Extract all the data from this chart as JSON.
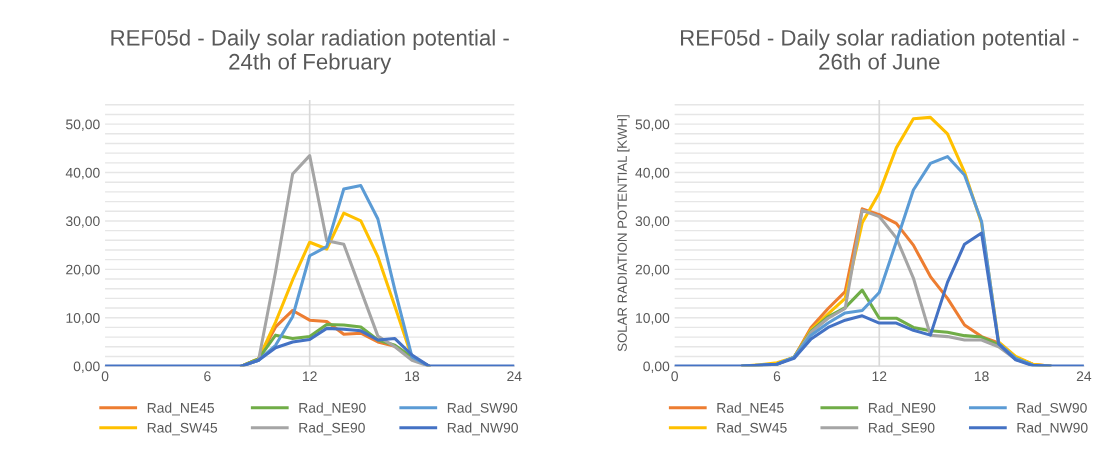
{
  "chart_data": [
    {
      "type": "line",
      "title": "REF05d - Daily solar radiation potential -\n24th of February",
      "x": [
        0,
        1,
        2,
        3,
        4,
        5,
        6,
        7,
        8,
        9,
        10,
        11,
        12,
        13,
        14,
        15,
        16,
        17,
        18,
        19,
        20,
        21,
        22,
        23,
        24
      ],
      "xlim": [
        0,
        24
      ],
      "xticks": [
        0,
        6,
        12,
        18,
        24
      ],
      "ylim": [
        0,
        55
      ],
      "yticks": [
        {
          "value": 0,
          "label": "0,00"
        },
        {
          "value": 2,
          "label": null
        },
        {
          "value": 4,
          "label": null
        },
        {
          "value": 6,
          "label": null
        },
        {
          "value": 8,
          "label": null
        },
        {
          "value": 10,
          "label": "10,00"
        },
        {
          "value": 12,
          "label": null
        },
        {
          "value": 14,
          "label": null
        },
        {
          "value": 16,
          "label": null
        },
        {
          "value": 18,
          "label": null
        },
        {
          "value": 20,
          "label": "20,00"
        },
        {
          "value": 22,
          "label": null
        },
        {
          "value": 24,
          "label": null
        },
        {
          "value": 26,
          "label": null
        },
        {
          "value": 28,
          "label": null
        },
        {
          "value": 30,
          "label": "30,00"
        },
        {
          "value": 32,
          "label": null
        },
        {
          "value": 34,
          "label": null
        },
        {
          "value": 36,
          "label": null
        },
        {
          "value": 38,
          "label": null
        },
        {
          "value": 40,
          "label": "40,00"
        },
        {
          "value": 42,
          "label": null
        },
        {
          "value": 44,
          "label": null
        },
        {
          "value": 46,
          "label": null
        },
        {
          "value": 48,
          "label": null
        },
        {
          "value": 50,
          "label": "50,00"
        },
        {
          "value": 52,
          "label": null
        },
        {
          "value": 54,
          "label": null
        }
      ],
      "grid": "y",
      "legend": "bottom",
      "ref_lines": [
        {
          "axis": "x",
          "value": 12,
          "color": "#d9d9d9"
        }
      ],
      "series": [
        {
          "name": "Rad_NE45",
          "color": "#ed7d31",
          "values": [
            null,
            null,
            null,
            null,
            null,
            null,
            null,
            null,
            0,
            1.5,
            8.1,
            11.5,
            9.5,
            9.2,
            6.6,
            6.8,
            5.0,
            4.1,
            1.6,
            0,
            null,
            null,
            null,
            null,
            null
          ]
        },
        {
          "name": "Rad_SW45",
          "color": "#ffc000",
          "values": [
            null,
            null,
            null,
            null,
            null,
            null,
            null,
            null,
            0,
            1.5,
            9.1,
            17.8,
            25.6,
            24.2,
            31.6,
            30.0,
            22.6,
            12.3,
            1.8,
            0,
            null,
            null,
            null,
            null,
            null
          ]
        },
        {
          "name": "Rad_NE90",
          "color": "#70ad47",
          "values": [
            null,
            null,
            null,
            null,
            null,
            null,
            null,
            null,
            0,
            1.5,
            6.4,
            5.7,
            6.1,
            8.6,
            8.5,
            8.1,
            5.4,
            4.3,
            1.9,
            0,
            null,
            null,
            null,
            null,
            null
          ]
        },
        {
          "name": "Rad_SE90",
          "color": "#a5a5a5",
          "values": [
            null,
            null,
            null,
            null,
            null,
            null,
            null,
            null,
            0,
            1.2,
            19.5,
            39.7,
            43.5,
            25.9,
            25.2,
            15.7,
            6.2,
            4.0,
            1.2,
            0,
            null,
            null,
            null,
            null,
            null
          ]
        },
        {
          "name": "Rad_SW90",
          "color": "#5b9bd5",
          "values": [
            null,
            null,
            null,
            null,
            null,
            null,
            null,
            null,
            0,
            1.2,
            4.3,
            10.2,
            22.8,
            24.7,
            36.6,
            37.3,
            30.4,
            15.7,
            1.9,
            0,
            null,
            null,
            null,
            null,
            null
          ]
        },
        {
          "name": "Rad_NW90",
          "color": "#4472c4",
          "values": [
            0,
            0,
            0,
            0,
            0,
            0,
            0,
            0,
            0,
            1.2,
            3.8,
            5.0,
            5.5,
            7.8,
            7.6,
            7.3,
            5.4,
            5.7,
            2.3,
            0,
            0,
            0,
            0,
            0,
            0
          ]
        }
      ]
    },
    {
      "type": "line",
      "title": "REF05d - Daily solar radiation potential -\n26th of June",
      "ylabel": "SOLAR RADIATION POTENTIAL [KWH]",
      "x": [
        0,
        1,
        2,
        3,
        4,
        5,
        6,
        7,
        8,
        9,
        10,
        11,
        12,
        13,
        14,
        15,
        16,
        17,
        18,
        19,
        20,
        21,
        22,
        23,
        24
      ],
      "xlim": [
        0,
        24
      ],
      "xticks": [
        0,
        6,
        12,
        18,
        24
      ],
      "ylim": [
        0,
        55
      ],
      "yticks": [
        {
          "value": 0,
          "label": "0,00"
        },
        {
          "value": 2,
          "label": null
        },
        {
          "value": 4,
          "label": null
        },
        {
          "value": 6,
          "label": null
        },
        {
          "value": 8,
          "label": null
        },
        {
          "value": 10,
          "label": "10,00"
        },
        {
          "value": 12,
          "label": null
        },
        {
          "value": 14,
          "label": null
        },
        {
          "value": 16,
          "label": null
        },
        {
          "value": 18,
          "label": null
        },
        {
          "value": 20,
          "label": "20,00"
        },
        {
          "value": 22,
          "label": null
        },
        {
          "value": 24,
          "label": null
        },
        {
          "value": 26,
          "label": null
        },
        {
          "value": 28,
          "label": null
        },
        {
          "value": 30,
          "label": "30,00"
        },
        {
          "value": 32,
          "label": null
        },
        {
          "value": 34,
          "label": null
        },
        {
          "value": 36,
          "label": null
        },
        {
          "value": 38,
          "label": null
        },
        {
          "value": 40,
          "label": "40,00"
        },
        {
          "value": 42,
          "label": null
        },
        {
          "value": 44,
          "label": null
        },
        {
          "value": 46,
          "label": null
        },
        {
          "value": 48,
          "label": null
        },
        {
          "value": 50,
          "label": "50,00"
        },
        {
          "value": 52,
          "label": null
        },
        {
          "value": 54,
          "label": null
        }
      ],
      "grid": "y",
      "legend": "bottom",
      "ref_lines": [
        {
          "axis": "x",
          "value": 12,
          "color": "#d9d9d9"
        }
      ],
      "series": [
        {
          "name": "Rad_NE45",
          "color": "#ed7d31",
          "values": [
            null,
            null,
            null,
            null,
            0,
            0.2,
            0.4,
            1.8,
            8.0,
            11.9,
            15.4,
            32.5,
            31.3,
            29.5,
            25.0,
            18.5,
            14.0,
            8.5,
            6.1,
            4.8,
            1.8,
            0.4,
            0,
            null,
            null
          ]
        },
        {
          "name": "Rad_SW45",
          "color": "#ffc000",
          "values": [
            null,
            null,
            null,
            null,
            0,
            0.3,
            0.7,
            1.8,
            7.5,
            10.8,
            14.0,
            29.6,
            35.8,
            45.1,
            51.1,
            51.4,
            48.0,
            40.1,
            29.5,
            5.0,
            2.0,
            0.4,
            0,
            null,
            null
          ]
        },
        {
          "name": "Rad_NE90",
          "color": "#70ad47",
          "values": [
            null,
            null,
            null,
            null,
            0,
            0.2,
            0.4,
            1.8,
            7.2,
            10.2,
            12.1,
            15.7,
            9.9,
            9.9,
            8.0,
            7.3,
            7.0,
            6.3,
            6.0,
            4.4,
            1.6,
            0.2,
            0,
            null,
            null
          ]
        },
        {
          "name": "Rad_SE90",
          "color": "#a5a5a5",
          "values": [
            null,
            null,
            null,
            null,
            0,
            0.2,
            0.4,
            1.8,
            7.0,
            9.9,
            11.9,
            32.2,
            30.9,
            26.5,
            18.2,
            6.4,
            6.1,
            5.4,
            5.4,
            4.0,
            1.4,
            0.2,
            0,
            null,
            null
          ]
        },
        {
          "name": "Rad_SW90",
          "color": "#5b9bd5",
          "values": [
            null,
            null,
            null,
            null,
            0,
            0.2,
            0.4,
            1.8,
            6.4,
            8.9,
            11.0,
            11.5,
            15.2,
            25.7,
            36.4,
            41.9,
            43.3,
            39.5,
            29.9,
            4.7,
            1.6,
            0.2,
            0,
            null,
            null
          ]
        },
        {
          "name": "Rad_NW90",
          "color": "#4472c4",
          "values": [
            0,
            0,
            0,
            0,
            0,
            0.2,
            0.4,
            1.6,
            5.6,
            8.0,
            9.5,
            10.4,
            8.9,
            8.9,
            7.4,
            6.4,
            17.3,
            25.2,
            27.5,
            4.6,
            1.3,
            0.1,
            0,
            0,
            0
          ]
        }
      ]
    }
  ]
}
